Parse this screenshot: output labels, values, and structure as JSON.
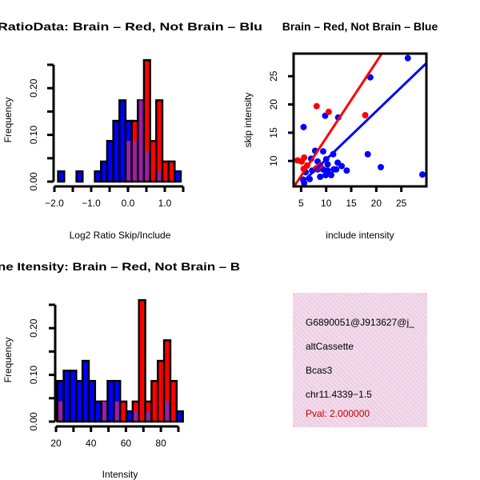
{
  "colors": {
    "brain": "#ff0000",
    "not_brain": "#0000ff",
    "overlap": "#9a1ea8",
    "pval": "#c00000"
  },
  "chart_data": [
    {
      "type": "bar",
      "title": "RatioData: Brain – Red, Not Brain – Blu",
      "xlabel": "Log2 Ratio Skip/Include",
      "ylabel": "Frequency",
      "bin_start": -1.9,
      "bin_width": 0.1667,
      "xticks": [
        -2.0,
        -1.5,
        -1.0,
        -0.5,
        0.0,
        0.5,
        1.0,
        1.5
      ],
      "xtick_labels": [
        "−2.0",
        "−1.0",
        "0.0",
        "1.0"
      ],
      "xtick_label_values": [
        -2.0,
        -1.0,
        0.0,
        1.0
      ],
      "yticks": [
        0,
        0.05,
        0.1,
        0.15,
        0.2,
        0.25
      ],
      "ytick_labels": [
        "0.00",
        "0.10",
        "0.20"
      ],
      "ytick_label_values": [
        0,
        0.1,
        0.2
      ],
      "series": [
        {
          "name": "Not Brain",
          "color": "blue",
          "values": [
            0.022,
            0,
            0,
            0.022,
            0,
            0,
            0.022,
            0.043,
            0.087,
            0.13,
            0.174,
            0.13,
            0.087,
            0.174,
            0.065,
            0,
            0.022,
            0,
            0,
            0.022
          ]
        },
        {
          "name": "Brain",
          "color": "red",
          "values": [
            0,
            0,
            0,
            0,
            0,
            0,
            0,
            0,
            0,
            0,
            0,
            0.087,
            0.13,
            0.174,
            0.26,
            0.087,
            0.174,
            0.043,
            0.043,
            0
          ]
        }
      ]
    },
    {
      "type": "scatter",
      "title": "Brain – Red, Not Brain – Blue",
      "xlabel": "include intensity",
      "ylabel": "skip intensity",
      "xlim": [
        3.5,
        30
      ],
      "ylim": [
        5.5,
        29
      ],
      "xticks": [
        5,
        10,
        15,
        20,
        25
      ],
      "xtick_labels": [
        "5",
        "10",
        "15",
        "20",
        "25"
      ],
      "yticks": [
        10,
        15,
        20,
        25
      ],
      "ytick_labels": [
        "10",
        "15",
        "20",
        "25"
      ],
      "series": [
        {
          "name": "Not Brain",
          "color": "blue",
          "points": [
            [
              26.3,
              28.2
            ],
            [
              18.8,
              24.8
            ],
            [
              9.8,
              18.0
            ],
            [
              12.4,
              17.7
            ],
            [
              5.5,
              16.0
            ],
            [
              18.3,
              11.2
            ],
            [
              20.9,
              8.9
            ],
            [
              29.2,
              7.6
            ],
            [
              9.4,
              11.7
            ],
            [
              7.8,
              11.8
            ],
            [
              11.4,
              11.2
            ],
            [
              14.1,
              8.3
            ],
            [
              13.1,
              9.1
            ],
            [
              12.3,
              9.7
            ],
            [
              10.0,
              10.3
            ],
            [
              8.8,
              9.0
            ],
            [
              8.8,
              7.2
            ],
            [
              11.0,
              7.5
            ],
            [
              5.6,
              6.1
            ],
            [
              6.7,
              6.8
            ],
            [
              7.0,
              10.4
            ],
            [
              8.3,
              9.9
            ],
            [
              11.5,
              8.5
            ],
            [
              10.3,
              9.4
            ],
            [
              5.9,
              8.0
            ],
            [
              7.2,
              8.3
            ],
            [
              9.4,
              8.5
            ],
            [
              10.3,
              8.3
            ],
            [
              12.0,
              8.5
            ],
            [
              5.4,
              6.7
            ],
            [
              8.3,
              8.5
            ],
            [
              9.9,
              7.5
            ]
          ],
          "fit_line": [
            [
              5.1,
              6.1
            ],
            [
              30.1,
              27.4
            ]
          ]
        },
        {
          "name": "Brain",
          "color": "red",
          "points": [
            [
              8.1,
              19.7
            ],
            [
              10.5,
              18.7
            ],
            [
              17.8,
              18.1
            ],
            [
              4.3,
              10.1
            ],
            [
              5.6,
              10.6
            ],
            [
              5.1,
              9.9
            ],
            [
              5.5,
              8.6
            ],
            [
              6.2,
              9.2
            ],
            [
              8.0,
              8.7
            ],
            [
              8.8,
              9.2
            ]
          ],
          "fit_line": [
            [
              3.8,
              5.75
            ],
            [
              21.1,
              29.0
            ]
          ]
        }
      ]
    },
    {
      "type": "bar",
      "title": "ne Itensity: Brain – Red, Not Brain – B",
      "xlabel": "Intensity",
      "ylabel": "Frequency",
      "bin_start": 20.8,
      "bin_width": 3.59,
      "xticks": [
        20,
        30,
        40,
        50,
        60,
        70,
        80,
        90
      ],
      "xtick_labels": [
        "20",
        "40",
        "60",
        "80"
      ],
      "xtick_label_values": [
        20,
        40,
        60,
        80
      ],
      "yticks": [
        0,
        0.05,
        0.1,
        0.15,
        0.2,
        0.25
      ],
      "ytick_labels": [
        "0.00",
        "0.10",
        "0.20"
      ],
      "ytick_label_values": [
        0,
        0.1,
        0.2
      ],
      "series": [
        {
          "name": "Not Brain",
          "color": "blue",
          "values": [
            0.087,
            0.109,
            0.109,
            0.087,
            0.13,
            0.087,
            0.043,
            0.043,
            0.087,
            0.087,
            0,
            0.022,
            0.022,
            0,
            0.022,
            0,
            0,
            0.043,
            0,
            0.022
          ]
        },
        {
          "name": "Brain",
          "color": "red",
          "values": [
            0.043,
            0,
            0,
            0,
            0,
            0,
            0,
            0.043,
            0,
            0.043,
            0.043,
            0,
            0.043,
            0.26,
            0.043,
            0.087,
            0.13,
            0.174,
            0.087,
            0
          ]
        }
      ]
    }
  ],
  "info": {
    "id": "G6890051@J913627@j_",
    "event_type": "altCassette",
    "gene": "Bcas3",
    "location": "chr11.4339−1.5",
    "pval": "Pval: 2.000000"
  }
}
